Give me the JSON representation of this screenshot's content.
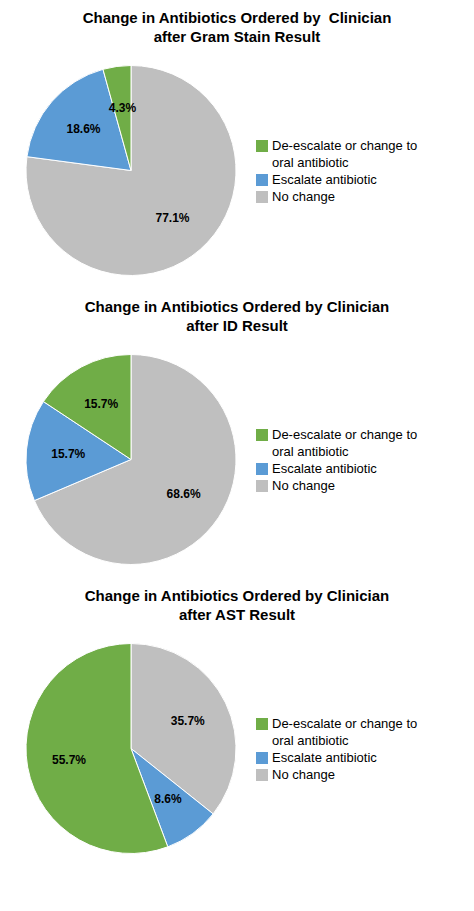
{
  "chart_data": [
    {
      "type": "pie",
      "title": "Change in Antibiotics Ordered by  Clinician\nafter Gram Stain Result",
      "categories": [
        "No change",
        "Escalate antibiotic",
        "De-escalate or change to\noral antibiotic"
      ],
      "values": [
        77.1,
        18.6,
        4.3
      ],
      "value_labels": [
        "77.1%",
        "18.6%",
        "4.3%"
      ],
      "colors": [
        "#bfbfbf",
        "#5b9bd5",
        "#70ad47"
      ],
      "data_labels": true,
      "legend": "right"
    },
    {
      "type": "pie",
      "title": "Change in Antibiotics Ordered by Clinician\nafter ID Result",
      "categories": [
        "No change",
        "Escalate antibiotic",
        "De-escalate or change to\noral antibiotic"
      ],
      "values": [
        68.6,
        15.7,
        15.7
      ],
      "value_labels": [
        "68.6%",
        "15.7%",
        "15.7%"
      ],
      "colors": [
        "#bfbfbf",
        "#5b9bd5",
        "#70ad47"
      ],
      "data_labels": true,
      "legend": "right"
    },
    {
      "type": "pie",
      "title": "Change in Antibiotics Ordered by Clinician\nafter AST Result",
      "categories": [
        "No change",
        "Escalate antibiotic",
        "De-escalate or change to\noral antibiotic"
      ],
      "values": [
        35.7,
        8.6,
        55.7
      ],
      "value_labels": [
        "35.7%",
        "8.6%",
        "55.7%"
      ],
      "colors": [
        "#bfbfbf",
        "#5b9bd5",
        "#70ad47"
      ],
      "data_labels": true,
      "legend": "right"
    }
  ]
}
